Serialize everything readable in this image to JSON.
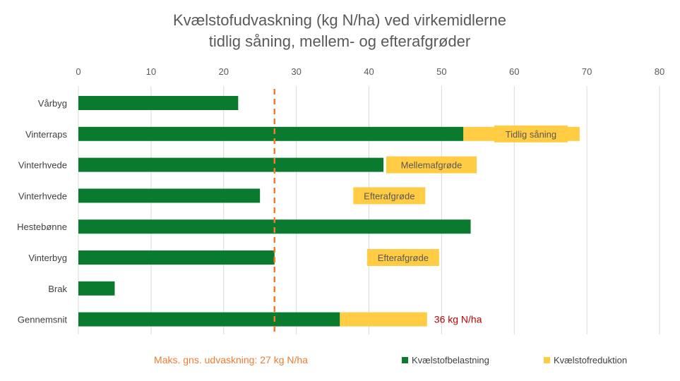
{
  "chart_data": {
    "type": "bar",
    "orientation": "horizontal",
    "stacked": true,
    "title": [
      "Kvælstofudvaskning (kg N/ha) ved virkemidlerne",
      "tidlig såning, mellem- og efterafgrøder"
    ],
    "xaxis_position": "top",
    "xlim": [
      0,
      80
    ],
    "xticks": [
      0,
      10,
      20,
      30,
      40,
      50,
      60,
      70,
      80
    ],
    "grid": true,
    "categories": [
      "Vårbyg",
      "Vinterraps",
      "Vinterhvede",
      "Vinterhvede",
      "Hestebønne",
      "Vinterbyg",
      "Brak",
      "Gennemsnit"
    ],
    "series": [
      {
        "name": "Kvælstofbelastning",
        "color": "#0a7a2f",
        "values": [
          22,
          53,
          42,
          25,
          54,
          27,
          5,
          36
        ]
      },
      {
        "name": "Kvælstofreduktion",
        "color": "#ffcc44",
        "values": [
          0,
          16,
          0,
          0,
          0,
          0,
          0,
          12
        ]
      }
    ],
    "bar_labels": [
      "",
      "Tidlig såning",
      "Mellemafgrøde",
      "Efterafgrøde",
      "",
      "Efterafgrøde",
      "",
      ""
    ],
    "label_color": "#ffcc44",
    "reference_line": {
      "value": 27,
      "color": "#ed7d31",
      "label": "Maks. gns. udvaskning: 27 kg N/ha"
    },
    "annotation": {
      "text": "36 kg N/ha",
      "color": "#c00000"
    },
    "legend_position": "bottom-right"
  }
}
